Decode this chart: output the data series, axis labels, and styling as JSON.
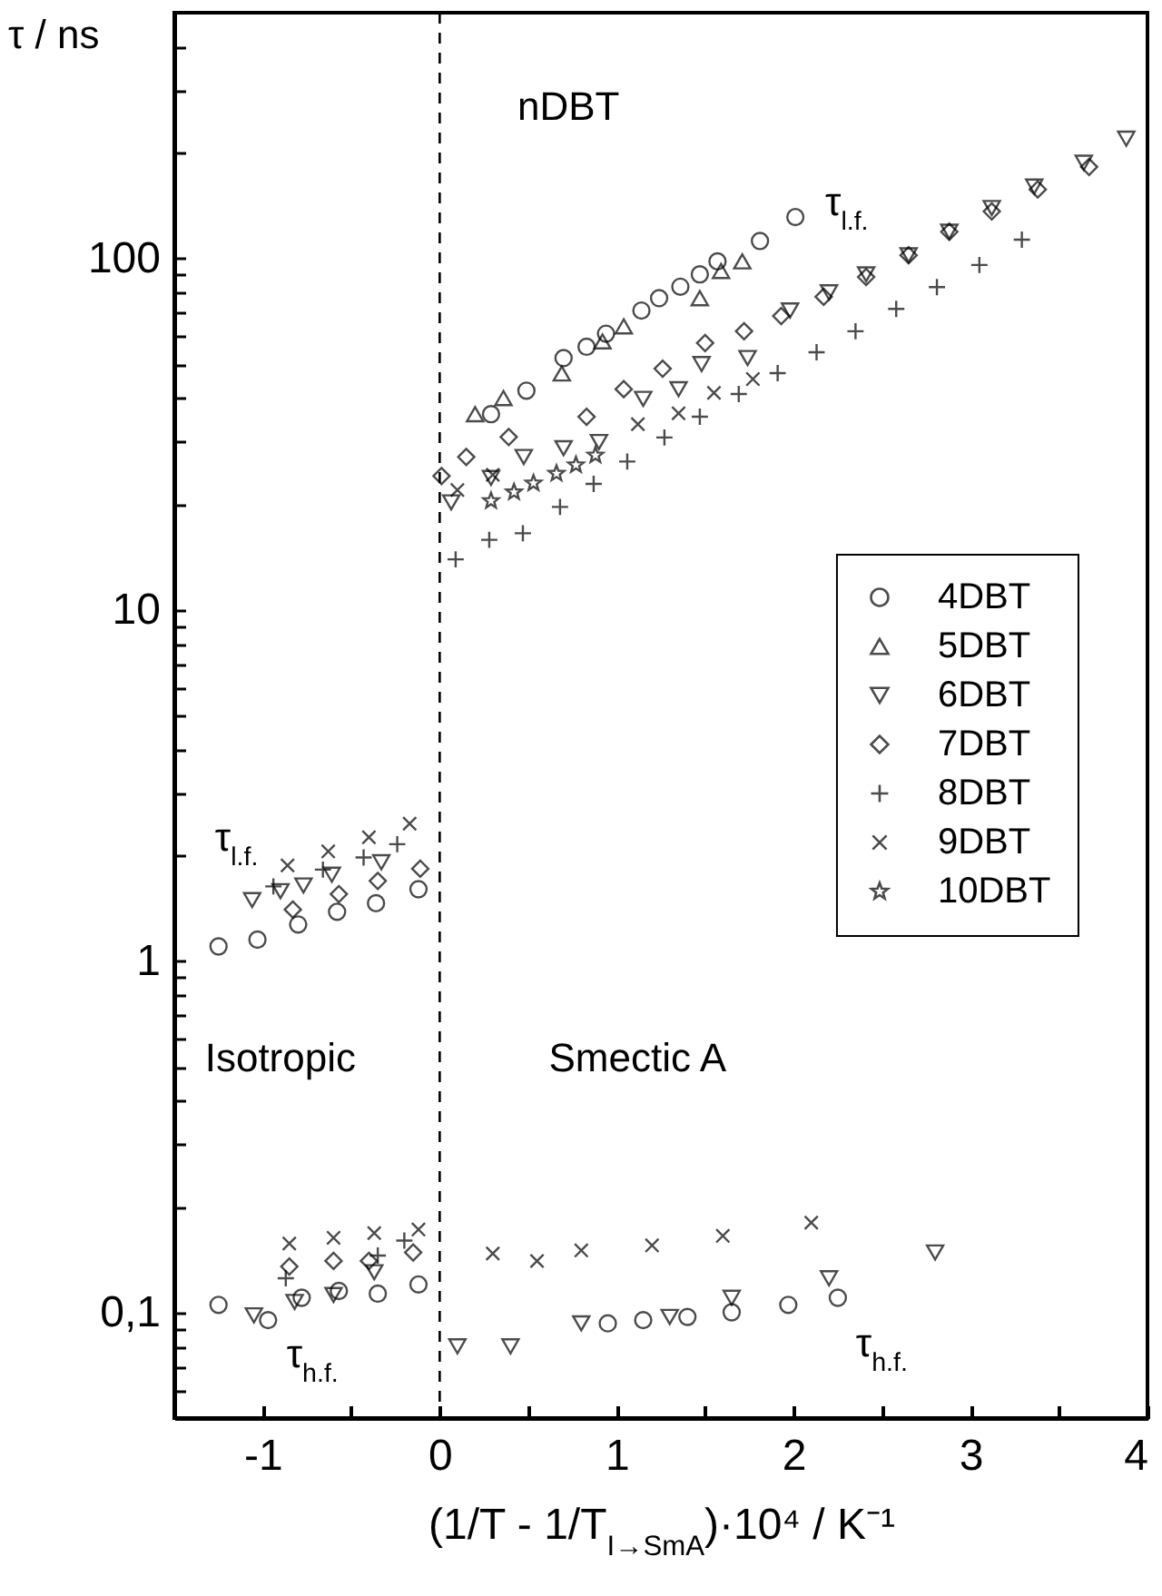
{
  "chart_data": {
    "type": "scatter",
    "xlabel": "(1/T - 1/T$_{I→SmA}$)·10⁴ / K⁻¹",
    "ylabel": "τ / ns",
    "log": "y",
    "grid": false,
    "legend": "right",
    "xlim": [
      -1.5,
      4
    ],
    "ylim": [
      0.05,
      500
    ],
    "xticks": [
      -1,
      {
        "value": -0.5,
        "label": null
      },
      0,
      {
        "value": 0.5,
        "label": null
      },
      1,
      {
        "value": 1.5,
        "label": null
      },
      2,
      {
        "value": 2.5,
        "label": null
      },
      3,
      {
        "value": 3.5,
        "label": null
      },
      4
    ],
    "yticks": [
      {
        "value": 0.06,
        "label": null
      },
      {
        "value": 0.07,
        "label": null
      },
      {
        "value": 0.08,
        "label": null
      },
      {
        "value": 0.09,
        "label": null
      },
      {
        "value": 0.1,
        "label": "0,1"
      },
      {
        "value": 0.2,
        "label": null
      },
      {
        "value": 0.3,
        "label": null
      },
      {
        "value": 0.4,
        "label": null
      },
      {
        "value": 0.5,
        "label": null
      },
      {
        "value": 0.6,
        "label": null
      },
      {
        "value": 0.7,
        "label": null
      },
      {
        "value": 0.8,
        "label": null
      },
      {
        "value": 0.9,
        "label": null
      },
      1,
      {
        "value": 2,
        "label": null
      },
      {
        "value": 3,
        "label": null
      },
      {
        "value": 4,
        "label": null
      },
      {
        "value": 5,
        "label": null
      },
      {
        "value": 6,
        "label": null
      },
      {
        "value": 7,
        "label": null
      },
      {
        "value": 8,
        "label": null
      },
      {
        "value": 9,
        "label": null
      },
      10,
      {
        "value": 20,
        "label": null
      },
      {
        "value": 30,
        "label": null
      },
      {
        "value": 40,
        "label": null
      },
      {
        "value": 50,
        "label": null
      },
      {
        "value": 60,
        "label": null
      },
      {
        "value": 70,
        "label": null
      },
      {
        "value": 80,
        "label": null
      },
      {
        "value": 90,
        "label": null
      },
      100,
      {
        "value": 200,
        "label": null
      },
      {
        "value": 300,
        "label": null
      },
      {
        "value": 400,
        "label": null
      }
    ],
    "ref_lines": [
      {
        "axis": "x",
        "value": 0,
        "line_style": "dashed",
        "color": "#000000"
      }
    ],
    "annotations": [
      "nDBT",
      "τ$_{l.f.}$",
      "τ$_{l.f.}$",
      "τ$_{h.f.}$",
      "τ$_{h.f.}$",
      "Isotropic",
      "Smectic A"
    ],
    "series": [
      {
        "name": "4DBT",
        "color": "#000000",
        "marker": "circle",
        "x": [
          0.29,
          0.49,
          0.7,
          0.83,
          0.94,
          1.14,
          1.24,
          1.36,
          1.47,
          1.57,
          1.81,
          2.01,
          -1.25,
          -1.03,
          -0.8,
          -0.58,
          -0.36,
          -0.12,
          -1.25,
          -0.97,
          -0.78,
          -0.57,
          -0.35,
          -0.12,
          0.95,
          1.15,
          1.4,
          1.65,
          1.97,
          2.25
        ],
        "values": [
          36,
          42,
          52,
          56,
          61,
          71,
          77,
          83,
          90,
          98,
          112,
          131,
          1.1,
          1.15,
          1.27,
          1.38,
          1.46,
          1.6,
          0.105,
          0.095,
          0.11,
          0.115,
          0.113,
          0.12,
          0.093,
          0.095,
          0.097,
          0.1,
          0.105,
          0.11
        ]
      },
      {
        "name": "5DBT",
        "color": "#000000",
        "marker": "triangle",
        "x": [
          0.2,
          0.36,
          0.69,
          0.92,
          1.04,
          1.47,
          1.59,
          1.71
        ],
        "values": [
          36,
          40,
          47,
          58,
          64,
          77,
          92,
          98
        ]
      },
      {
        "name": "6DBT",
        "color": "#000000",
        "marker": "triangle-down",
        "x": [
          0.065,
          0.29,
          0.475,
          0.7,
          0.9,
          1.15,
          1.35,
          1.48,
          1.74,
          1.98,
          2.2,
          2.41,
          2.65,
          2.88,
          3.12,
          3.36,
          3.64,
          3.88,
          -1.06,
          -0.9,
          -0.77,
          -0.61,
          -0.33,
          -1.05,
          -0.82,
          -0.6,
          -0.37,
          0.1,
          0.4,
          0.8,
          1.3,
          1.65,
          2.2,
          2.8
        ],
        "values": [
          20.2,
          23.7,
          27.2,
          28.8,
          30,
          39.8,
          42.4,
          50,
          52,
          71,
          80,
          90,
          102,
          119,
          139,
          160,
          187,
          219,
          1.49,
          1.58,
          1.64,
          1.76,
          1.91,
          0.098,
          0.107,
          0.112,
          0.13,
          0.08,
          0.08,
          0.093,
          0.097,
          0.11,
          0.125,
          0.148
        ]
      },
      {
        "name": "7DBT",
        "color": "#000000",
        "marker": "diamond",
        "x": [
          0.01,
          0.15,
          0.39,
          0.83,
          1.04,
          1.26,
          1.5,
          1.72,
          1.93,
          2.17,
          2.41,
          2.65,
          2.88,
          3.12,
          3.38,
          3.67,
          -0.83,
          -0.57,
          -0.35,
          -0.11,
          -0.85,
          -0.6,
          -0.4,
          -0.15
        ],
        "values": [
          24,
          27.2,
          31,
          35.4,
          42.4,
          48.5,
          57.4,
          62,
          68.5,
          77.7,
          88.5,
          102,
          119,
          136,
          157,
          182,
          1.4,
          1.55,
          1.69,
          1.83,
          0.135,
          0.14,
          0.14,
          0.148
        ]
      },
      {
        "name": "8DBT",
        "color": "#000000",
        "marker": "cross",
        "x": [
          0.09,
          0.28,
          0.47,
          0.68,
          0.87,
          1.06,
          1.27,
          1.47,
          1.69,
          1.91,
          2.13,
          2.35,
          2.58,
          2.81,
          3.05,
          3.29,
          -0.94,
          -0.66,
          -0.43,
          -0.24,
          -0.87,
          -0.35,
          -0.2
        ],
        "values": [
          13.9,
          15.8,
          16.5,
          19.6,
          22.8,
          26.4,
          30.9,
          35.4,
          41.1,
          47.1,
          54,
          62,
          71.8,
          82.8,
          95.7,
          113,
          1.63,
          1.82,
          1.97,
          2.15,
          0.125,
          0.145,
          0.16
        ]
      },
      {
        "name": "9DBT",
        "color": "#000000",
        "marker": "x",
        "x": [
          0.1,
          0.3,
          1.12,
          1.35,
          1.55,
          1.77,
          -0.86,
          -0.63,
          -0.4,
          -0.17,
          -0.85,
          -0.6,
          -0.37,
          -0.12,
          0.3,
          0.55,
          0.8,
          1.2,
          1.6,
          2.1
        ],
        "values": [
          21.9,
          24.2,
          33.7,
          36.2,
          41.4,
          45.3,
          1.87,
          2.05,
          2.25,
          2.46,
          0.157,
          0.163,
          0.168,
          0.172,
          0.147,
          0.14,
          0.15,
          0.155,
          0.165,
          0.18
        ]
      },
      {
        "name": "10DBT",
        "color": "#000000",
        "marker": "star",
        "x": [
          0.29,
          0.42,
          0.53,
          0.66,
          0.77,
          0.88
        ],
        "values": [
          20.4,
          21.6,
          22.9,
          24.4,
          25.8,
          27.5
        ]
      }
    ]
  }
}
